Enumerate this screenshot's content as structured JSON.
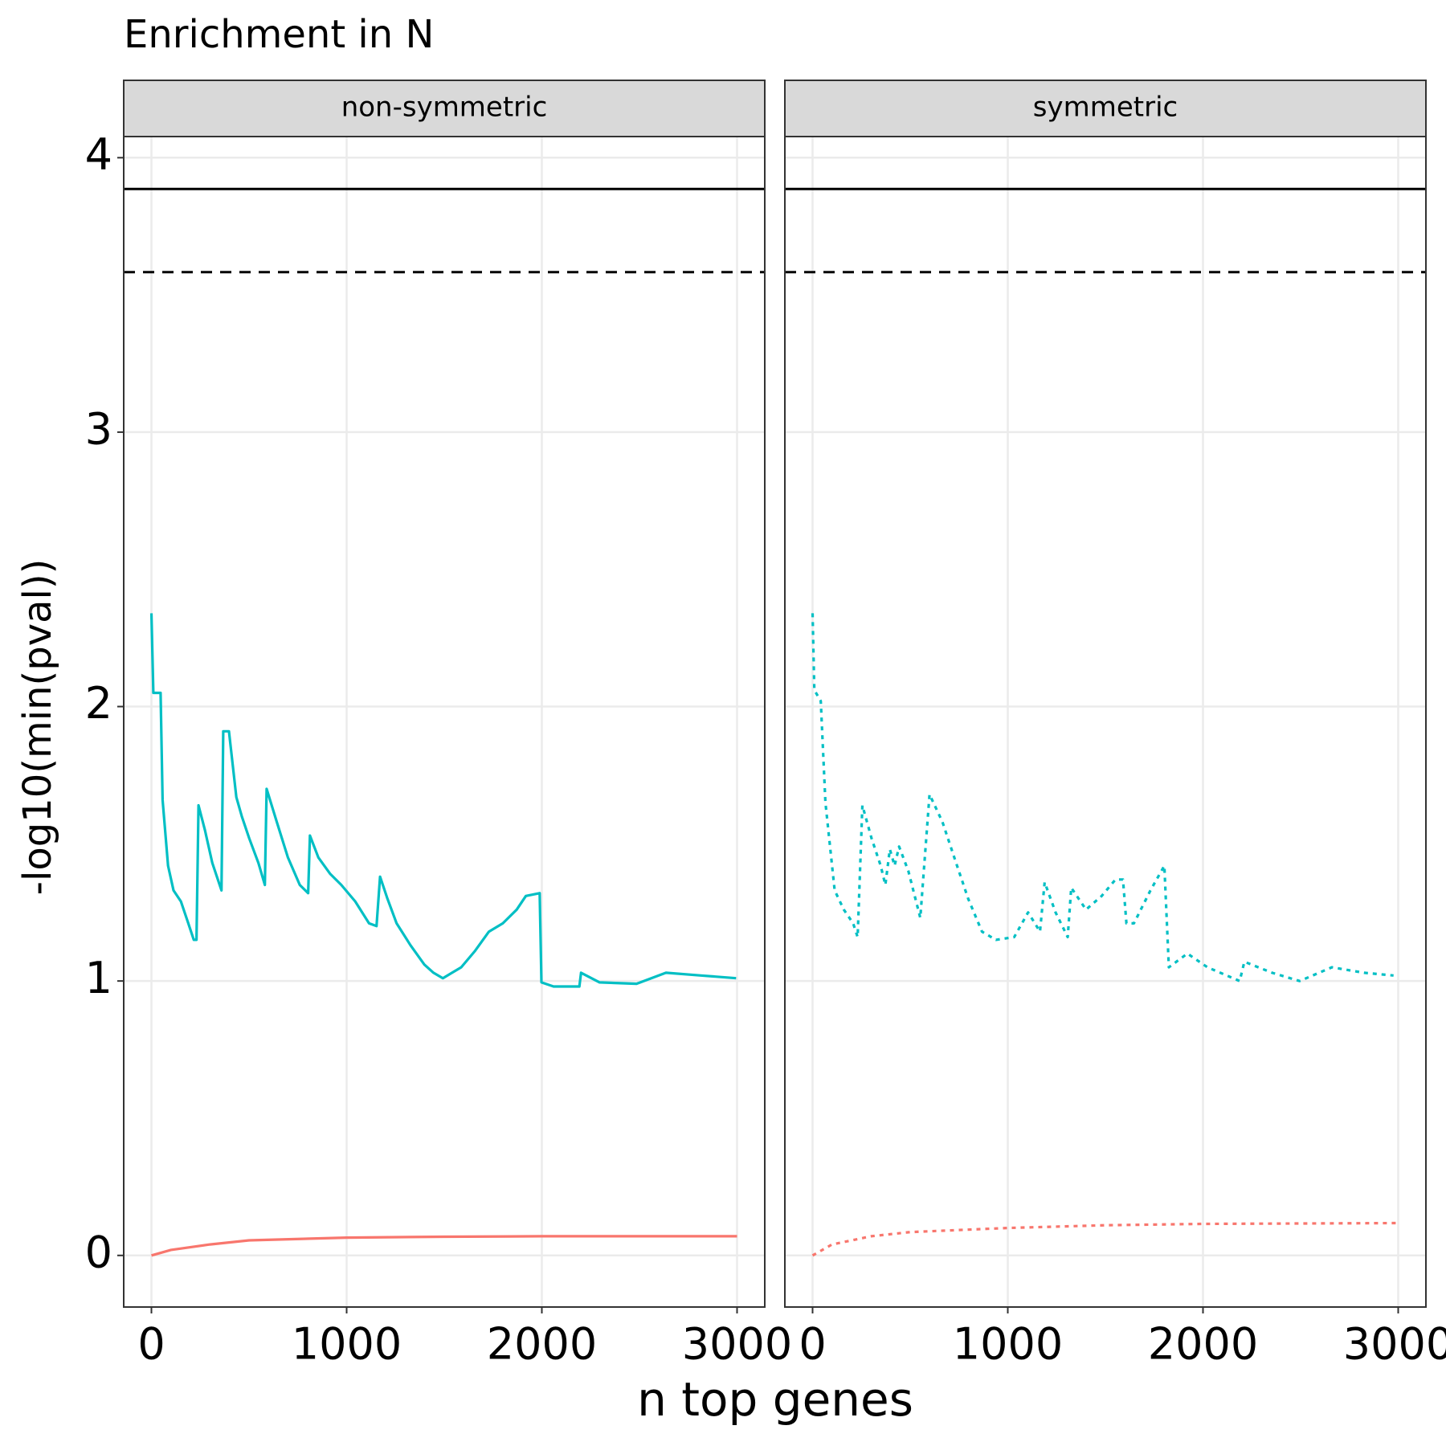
{
  "chart_data": {
    "type": "line",
    "title": "Enrichment in N",
    "x_label": "n top genes",
    "y_label": "-log10(min(pval))",
    "xlim": [
      -142,
      3142
    ],
    "ylim": [
      -0.188,
      4.077
    ],
    "xticks": [
      0,
      1000,
      2000,
      3000
    ],
    "yticks": [
      0,
      1,
      2,
      3,
      4
    ],
    "grid": true,
    "hlines": [
      {
        "value": 3.886,
        "linestyle": "solid",
        "color": "#000000"
      },
      {
        "value": 3.583,
        "linestyle": "dashed",
        "color": "#000000"
      }
    ],
    "panels": [
      {
        "name": "non-symmetric",
        "linestyle": "solid",
        "series": [
          {
            "color": "#00bfc4",
            "x": [
              0,
              10,
              47,
              57,
              85,
              113,
              151,
              189,
              217,
              231,
              241,
              274,
              312,
              359,
              368,
              397,
              435,
              463,
              501,
              548,
              581,
              590,
              642,
              699,
              760,
              803,
              812,
              855,
              916,
              973,
              1044,
              1115,
              1153,
              1171,
              1209,
              1256,
              1327,
              1398,
              1445,
              1493,
              1540,
              1587,
              1658,
              1729,
              1800,
              1871,
              1918,
              1989,
              1998,
              2060,
              2192,
              2201,
              2296,
              2485,
              2636,
              2815,
              2995
            ],
            "values": [
              2.34,
              2.05,
              2.05,
              1.66,
              1.42,
              1.33,
              1.29,
              1.21,
              1.15,
              1.15,
              1.64,
              1.55,
              1.43,
              1.33,
              1.91,
              1.91,
              1.67,
              1.6,
              1.52,
              1.43,
              1.35,
              1.7,
              1.58,
              1.45,
              1.35,
              1.32,
              1.53,
              1.45,
              1.39,
              1.35,
              1.29,
              1.21,
              1.2,
              1.38,
              1.3,
              1.21,
              1.13,
              1.06,
              1.03,
              1.01,
              1.03,
              1.05,
              1.11,
              1.18,
              1.21,
              1.26,
              1.31,
              1.32,
              0.995,
              0.98,
              0.98,
              1.03,
              0.995,
              0.99,
              1.03,
              1.02,
              1.01
            ]
          },
          {
            "color": "#f8766d",
            "x": [
              0,
              100,
              300,
              500,
              1000,
              1500,
              2000,
              3000
            ],
            "values": [
              0,
              0.02,
              0.04,
              0.055,
              0.065,
              0.068,
              0.07,
              0.07
            ]
          }
        ]
      },
      {
        "name": "symmetric",
        "linestyle": "dotted",
        "series": [
          {
            "color": "#00bfc4",
            "x": [
              0,
              9,
              42,
              66,
              113,
              160,
              208,
              231,
              255,
              302,
              349,
              373,
              396,
              420,
              443,
              491,
              552,
              599,
              665,
              726,
              797,
              868,
              939,
              1033,
              1104,
              1165,
              1189,
              1245,
              1307,
              1325,
              1401,
              1481,
              1552,
              1590,
              1608,
              1646,
              1731,
              1802,
              1825,
              1920,
              2023,
              2188,
              2212,
              2354,
              2495,
              2660,
              2825,
              2976
            ],
            "values": [
              2.34,
              2.06,
              2.02,
              1.65,
              1.33,
              1.26,
              1.21,
              1.16,
              1.64,
              1.52,
              1.42,
              1.35,
              1.48,
              1.42,
              1.49,
              1.4,
              1.23,
              1.68,
              1.58,
              1.45,
              1.3,
              1.18,
              1.15,
              1.16,
              1.25,
              1.18,
              1.36,
              1.25,
              1.16,
              1.34,
              1.26,
              1.31,
              1.37,
              1.37,
              1.21,
              1.21,
              1.33,
              1.42,
              1.05,
              1.1,
              1.05,
              1.0,
              1.07,
              1.03,
              1.0,
              1.05,
              1.03,
              1.02
            ]
          },
          {
            "color": "#f8766d",
            "x": [
              0,
              100,
              300,
              500,
              1000,
              1500,
              2000,
              3000
            ],
            "values": [
              0,
              0.04,
              0.07,
              0.085,
              0.1,
              0.11,
              0.115,
              0.118
            ]
          }
        ]
      }
    ]
  }
}
